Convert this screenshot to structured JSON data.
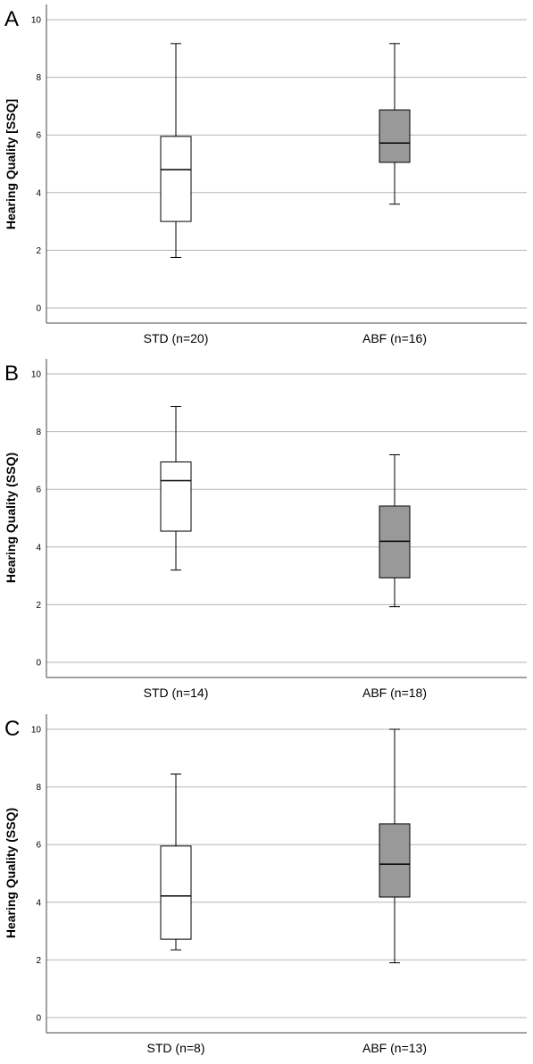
{
  "chart_data": [
    {
      "type": "box",
      "panel_label": "A",
      "ylabel": "Hearing Quality [SSQ]",
      "ylim": [
        0,
        10
      ],
      "yticks": [
        0,
        2,
        4,
        6,
        8,
        10
      ],
      "grid": "horizontal",
      "categories": [
        "STD (n=20)",
        "ABF (n=16)"
      ],
      "boxes": [
        {
          "category": "STD (n=20)",
          "min": 1.75,
          "q1": 3.0,
          "median": 4.8,
          "q3": 5.95,
          "max": 9.17,
          "fill": "#ffffff"
        },
        {
          "category": "ABF (n=16)",
          "min": 3.6,
          "q1": 5.05,
          "median": 5.72,
          "q3": 6.87,
          "max": 9.17,
          "fill": "#999999"
        }
      ]
    },
    {
      "type": "box",
      "panel_label": "B",
      "ylabel": "Hearing Quality (SSQ)",
      "ylim": [
        0,
        10
      ],
      "yticks": [
        0,
        2,
        4,
        6,
        8,
        10
      ],
      "grid": "horizontal",
      "categories": [
        "STD (n=14)",
        "ABF (n=18)"
      ],
      "boxes": [
        {
          "category": "STD (n=14)",
          "min": 3.2,
          "q1": 4.55,
          "median": 6.3,
          "q3": 6.95,
          "max": 8.87,
          "fill": "#ffffff"
        },
        {
          "category": "ABF (n=18)",
          "min": 1.93,
          "q1": 2.93,
          "median": 4.2,
          "q3": 5.42,
          "max": 7.2,
          "fill": "#999999"
        }
      ]
    },
    {
      "type": "box",
      "panel_label": "C",
      "ylabel": "Hearing Quality (SSQ)",
      "ylim": [
        0,
        10
      ],
      "yticks": [
        0,
        2,
        4,
        6,
        8,
        10
      ],
      "grid": "horizontal",
      "categories": [
        "STD (n=8)",
        "ABF (n=13)"
      ],
      "boxes": [
        {
          "category": "STD (n=8)",
          "min": 2.35,
          "q1": 2.72,
          "median": 4.22,
          "q3": 5.95,
          "max": 8.45,
          "fill": "#ffffff"
        },
        {
          "category": "ABF (n=13)",
          "min": 1.9,
          "q1": 4.18,
          "median": 5.32,
          "q3": 6.72,
          "max": 10.0,
          "fill": "#999999"
        }
      ]
    }
  ]
}
